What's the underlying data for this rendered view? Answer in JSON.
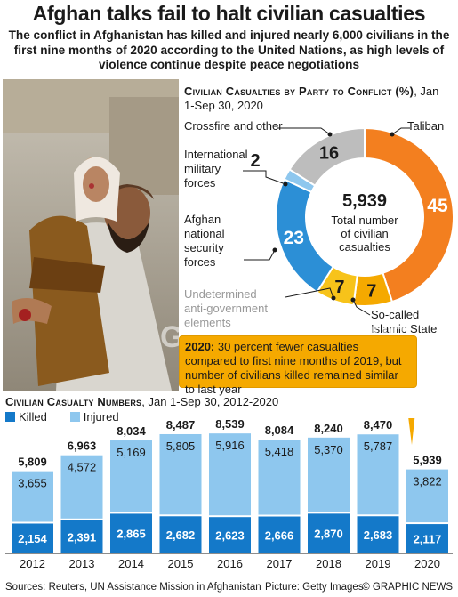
{
  "header": {
    "title": "Afghan talks fail to halt civilian casualties",
    "subtitle": "The conflict in Afghanistan has killed and injured nearly 6,000 civilians in the first nine months of 2020 according to the United Nations, as high levels of violence continue despite peace negotiations"
  },
  "donut_chart": {
    "title_bold": "Civilian Casualties by Party to Conflict (%)",
    "title_rest": ", Jan 1-Sep 30, 2020",
    "center_value": "5,939",
    "center_label": "Total number of civilian casualties",
    "labels": {
      "crossfire": "Crossfire and other",
      "taliban": "Taliban",
      "intl_l1": "International",
      "intl_l2": "military",
      "intl_l3": "forces",
      "afghan_l1": "Afghan",
      "afghan_l2": "national",
      "afghan_l3": "security",
      "afghan_l4": "forces",
      "undet_l1": "Undetermined",
      "undet_l2": "anti-government",
      "undet_l3": "elements",
      "is_l1": "So-called",
      "is_l2": "Islamic State"
    }
  },
  "banner": {
    "year": "2020:",
    "text": " 30 percent fewer casualties compared to first nine months of 2019, but number of civilians killed remained similar to last year"
  },
  "bar_chart": {
    "title_bold": "Civilian Casualty Numbers",
    "title_rest": ", Jan 1-Sep 30, 2012-2020",
    "legend_killed": "Killed",
    "legend_injured": "Injured"
  },
  "colors": {
    "taliban": "#f37f1f",
    "islamic_state": "#f5a900",
    "undetermined": "#f7c31a",
    "afghan_forces": "#2c8fd6",
    "intl_forces": "#8ec7ee",
    "crossfire": "#bdbdbd",
    "killed": "#1479c9",
    "injured": "#8ec7ee"
  },
  "chart_data": [
    {
      "type": "pie",
      "title": "Civilian Casualties by Party to Conflict (%), Jan 1-Sep 30, 2020",
      "categories": [
        "Taliban",
        "So-called Islamic State",
        "Undetermined anti-government elements",
        "Afghan national security forces",
        "International military forces",
        "Crossfire and other"
      ],
      "values": [
        45,
        7,
        7,
        23,
        2,
        16
      ],
      "total": "5,939"
    },
    {
      "type": "bar",
      "title": "Civilian Casualty Numbers, Jan 1-Sep 30, 2012-2020",
      "categories": [
        "2012",
        "2013",
        "2014",
        "2015",
        "2016",
        "2017",
        "2018",
        "2019",
        "2020"
      ],
      "series": [
        {
          "name": "Killed",
          "values": [
            2154,
            2391,
            2865,
            2682,
            2623,
            2666,
            2870,
            2683,
            2117
          ]
        },
        {
          "name": "Injured",
          "values": [
            3655,
            4572,
            5169,
            5805,
            5916,
            5418,
            5370,
            5787,
            3822
          ]
        }
      ],
      "totals": [
        5809,
        6963,
        8034,
        8487,
        8539,
        8084,
        8240,
        8470,
        5939
      ],
      "stacked": true,
      "legend": "top-left"
    }
  ],
  "footer": {
    "sources": "Sources: Reuters, UN Assistance Mission in Afghanistan",
    "picture": "Picture: Getty Images",
    "copyright": "© GRAPHIC NEWS"
  }
}
